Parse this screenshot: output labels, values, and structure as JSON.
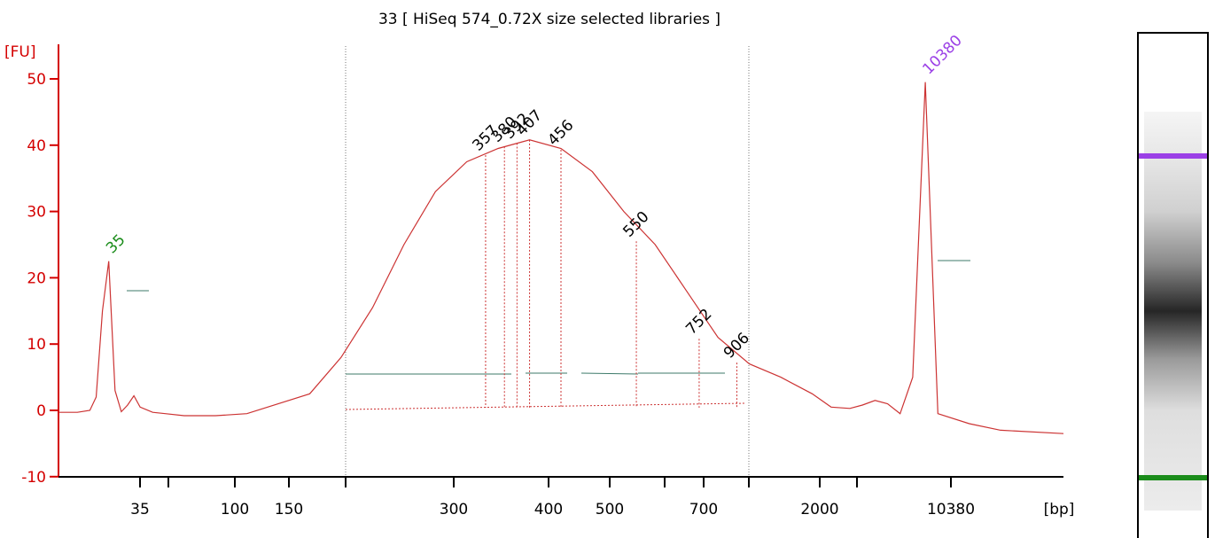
{
  "chart_data": {
    "type": "line",
    "title": "33  [ HiSeq 574_0.72X size selected libraries ]",
    "ylabel": "[FU]",
    "xlabel": "[bp]",
    "ylim": [
      -10,
      55
    ],
    "y_ticks": [
      -10,
      0,
      10,
      20,
      30,
      40,
      50
    ],
    "x_tick_labels": [
      "35",
      "",
      "100",
      "150",
      "",
      "300",
      "400",
      "500",
      "",
      "700",
      "",
      "2000",
      "",
      "10380"
    ],
    "grid": false,
    "colors": {
      "trace": "#cc3333",
      "axis": "#d40000",
      "lower_marker": "#1a8c1a",
      "upper_marker": "#9b40e6",
      "baseline": "#3d7a6a",
      "peak_label": "#000000"
    },
    "series": [
      {
        "x": [
          1,
          1.3,
          1.5,
          1.6,
          1.7,
          1.8,
          1.9,
          2.0,
          2.1,
          2.2,
          2.3,
          2.5,
          2.7,
          3.0,
          3.5,
          4.0,
          5.0,
          5.5,
          6.0,
          6.5,
          7.0,
          7.5,
          8.0,
          8.5,
          9.0,
          9.5,
          10.0,
          10.5,
          11.0,
          11.5,
          12.0,
          12.5,
          13.0,
          13.3,
          13.6,
          13.8,
          14.0,
          14.2,
          14.4,
          14.6,
          14.8,
          15.0,
          15.5,
          16.0,
          17.0
        ],
        "y": [
          -0.3,
          -0.3,
          0,
          2,
          15,
          22.5,
          3,
          -0.2,
          0.8,
          2.2,
          0.5,
          -0.3,
          -0.5,
          -0.8,
          -0.8,
          -0.5,
          2.5,
          8.0,
          15.5,
          25,
          33,
          37.5,
          39.5,
          40.8,
          39.5,
          36,
          30,
          25,
          18,
          11,
          7,
          5,
          2.5,
          0.5,
          0.3,
          0.8,
          1.5,
          1.0,
          -0.5,
          5,
          49.5,
          -0.5,
          -2.0,
          -3.0,
          -3.5
        ]
      }
    ],
    "markers": [
      {
        "label": "35",
        "x": 1.8,
        "y": 22.5
      },
      {
        "label": "10380",
        "x": 14.8,
        "y": 49.5
      }
    ],
    "peak_labels": [
      "357",
      "380",
      "392",
      "407",
      "456",
      "550",
      "752",
      "906"
    ],
    "peaks": [
      {
        "x": 7.8,
        "y": 38.5
      },
      {
        "x": 8.1,
        "y": 39.8
      },
      {
        "x": 8.3,
        "y": 40.3
      },
      {
        "x": 8.5,
        "y": 40.8
      },
      {
        "x": 9.0,
        "y": 39.3
      },
      {
        "x": 10.2,
        "y": 25.5
      },
      {
        "x": 11.2,
        "y": 10.8
      },
      {
        "x": 11.8,
        "y": 7.2
      }
    ]
  },
  "gel": {
    "upper_band_color": "#9b40e6",
    "lower_band_color": "#1a8c1a"
  }
}
